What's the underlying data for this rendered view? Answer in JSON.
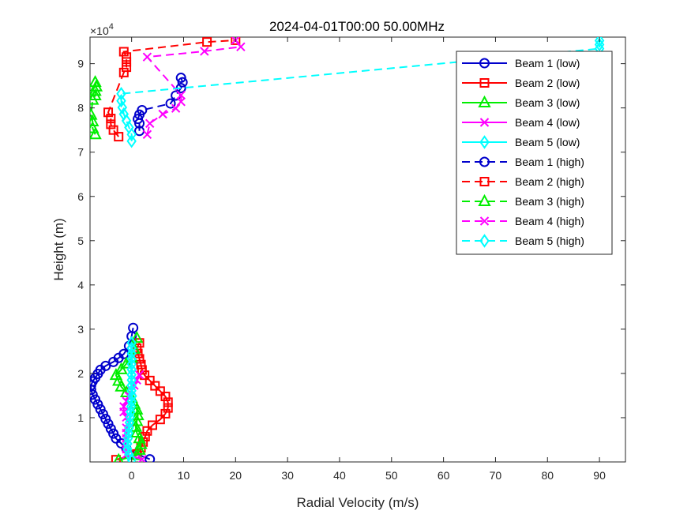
{
  "chart_data": {
    "type": "line",
    "title": "2024-04-01T00:00 50.00MHz",
    "xlabel": "Radial Velocity (m/s)",
    "ylabel": "Height (m)",
    "y_exponent_label": "×10",
    "y_exponent_power": "4",
    "xlim": [
      -8,
      95
    ],
    "ylim": [
      0,
      96000
    ],
    "xticks": [
      0,
      10,
      20,
      30,
      40,
      50,
      60,
      70,
      80,
      90
    ],
    "xtick_labels": [
      "0",
      "10",
      "20",
      "30",
      "40",
      "50",
      "60",
      "70",
      "80",
      "90"
    ],
    "yticks": [
      10000,
      20000,
      30000,
      40000,
      50000,
      60000,
      70000,
      80000,
      90000
    ],
    "ytick_labels": [
      "1",
      "2",
      "3",
      "4",
      "5",
      "6",
      "7",
      "8",
      "9"
    ],
    "grid": false,
    "legend_location": "top-right",
    "series": [
      {
        "name": "Beam 1 (low)",
        "color": "#0000cc",
        "line": "solid",
        "marker": "circle",
        "x": [
          3.5,
          1.0,
          -1.0,
          -2.0,
          -3.0,
          -3.5,
          -4.0,
          -4.5,
          -5.0,
          -5.5,
          -6.0,
          -6.5,
          -7.0,
          -7.5,
          -7.8,
          -7.8,
          -7.5,
          -7.0,
          -6.5,
          -6.0,
          -5.0,
          -3.5,
          -2.5,
          -1.5,
          -0.5,
          0.0,
          0.3
        ],
        "y": [
          600,
          1800,
          3000,
          4200,
          5300,
          6400,
          7500,
          8600,
          9700,
          10800,
          11900,
          13000,
          14100,
          15200,
          16300,
          17300,
          18200,
          19000,
          19900,
          20800,
          21700,
          22600,
          23500,
          24400,
          26200,
          28400,
          30300
        ]
      },
      {
        "name": "Beam 2 (low)",
        "color": "#ff0000",
        "line": "solid",
        "marker": "square",
        "x": [
          -3.0,
          1.0,
          1.8,
          2.2,
          2.6,
          3.0,
          4.0,
          5.5,
          6.5,
          7.0,
          7.0,
          6.5,
          5.5,
          4.5,
          3.5,
          2.5,
          2.0,
          1.8,
          1.5,
          1.2,
          1.0,
          1.5
        ],
        "y": [
          500,
          1800,
          3200,
          4500,
          5700,
          7000,
          8300,
          9600,
          10900,
          12200,
          13500,
          14800,
          16000,
          17200,
          18400,
          19600,
          20800,
          22000,
          23300,
          24500,
          25700,
          26900
        ]
      },
      {
        "name": "Beam 3 (low)",
        "color": "#00ee00",
        "line": "solid",
        "marker": "triangle",
        "x": [
          -2.5,
          1.0,
          1.5,
          1.8,
          1.5,
          1.0,
          0.8,
          1.0,
          1.2,
          1.0,
          0.5,
          0.0,
          -1.0,
          -2.0,
          -2.5,
          -3.0,
          -2.0,
          -1.0,
          0.0,
          0.5,
          1.0
        ],
        "y": [
          400,
          1500,
          2700,
          4000,
          5300,
          6600,
          7900,
          9200,
          10500,
          11800,
          13100,
          14400,
          15700,
          17000,
          18300,
          19600,
          20900,
          22200,
          23500,
          25500,
          28000
        ]
      },
      {
        "name": "Beam 4 (low)",
        "color": "#ff00ff",
        "line": "solid",
        "marker": "x",
        "x": [
          2.0,
          -1.0,
          -1.0,
          -1.0,
          -1.0,
          -1.0,
          -1.0,
          -0.5,
          -1.0,
          -1.5,
          -1.5,
          -1.0,
          -0.5,
          0.0,
          0.5,
          1.0,
          1.5
        ],
        "y": [
          600,
          1700,
          2900,
          4100,
          5300,
          6500,
          7700,
          8900,
          10100,
          11300,
          12500,
          13700,
          14900,
          16100,
          17300,
          18500,
          19700
        ]
      },
      {
        "name": "Beam 5 (low)",
        "color": "#00ffff",
        "line": "solid",
        "marker": "diamond",
        "x": [
          0.0,
          -0.5,
          -0.8,
          -0.8,
          -0.7,
          -0.6,
          -0.5,
          -0.4,
          -0.3,
          -0.2,
          -0.1,
          0.0,
          0.1,
          0.0,
          0.0,
          0.0,
          0.0,
          0.0,
          0.0,
          0.0,
          0.0,
          0.0,
          0.0
        ],
        "y": [
          500,
          1700,
          2900,
          4100,
          5300,
          6500,
          7700,
          8900,
          10100,
          11300,
          12500,
          13700,
          14900,
          16100,
          17300,
          18500,
          19700,
          20900,
          22100,
          23300,
          24500,
          25700,
          26900
        ]
      },
      {
        "name": "Beam 1 (high)",
        "color": "#0000cc",
        "line": "dashed",
        "marker": "circle",
        "x": [
          1.5,
          1.5,
          1.2,
          1.5,
          2.0,
          7.5,
          8.5,
          9.5,
          9.8,
          9.5
        ],
        "y": [
          74800,
          76500,
          77500,
          78500,
          79500,
          81000,
          82800,
          84500,
          85800,
          86800
        ]
      },
      {
        "name": "Beam 2 (high)",
        "color": "#ff0000",
        "line": "dashed",
        "marker": "square",
        "x": [
          -2.5,
          -3.5,
          -4.0,
          -4.0,
          -4.5,
          -1.5,
          -1.0,
          -1.0,
          -1.0,
          -1.5,
          14.5,
          20.0
        ],
        "y": [
          73500,
          75000,
          76300,
          77600,
          79000,
          88000,
          89200,
          90400,
          91500,
          92700,
          94900,
          95300
        ]
      },
      {
        "name": "Beam 3 (high)",
        "color": "#00ee00",
        "line": "dashed",
        "marker": "triangle",
        "x": [
          -7.0,
          -7.5,
          -7.5,
          -7.8,
          -7.5,
          -7.0,
          -7.0,
          -6.8,
          -7.0
        ],
        "y": [
          74000,
          75400,
          76900,
          78400,
          81800,
          82800,
          83800,
          84800,
          85800
        ]
      },
      {
        "name": "Beam 4 (high)",
        "color": "#ff00ff",
        "line": "dashed",
        "marker": "x",
        "x": [
          3.0,
          3.5,
          6.0,
          8.5,
          9.5,
          9.5,
          3.0,
          14.0,
          21.0,
          20.0
        ],
        "y": [
          74000,
          76500,
          78600,
          79900,
          81400,
          82900,
          91500,
          92800,
          93800,
          95300
        ]
      },
      {
        "name": "Beam 5 (high)",
        "color": "#00ffff",
        "line": "dashed",
        "marker": "diamond",
        "x": [
          0.0,
          0.0,
          -0.5,
          -1.0,
          -1.5,
          -1.8,
          -2.0,
          -2.0,
          90.0,
          90.0,
          90.0
        ],
        "y": [
          72500,
          74000,
          75600,
          77100,
          78600,
          80100,
          81600,
          83200,
          93400,
          94300,
          95200
        ]
      }
    ]
  }
}
